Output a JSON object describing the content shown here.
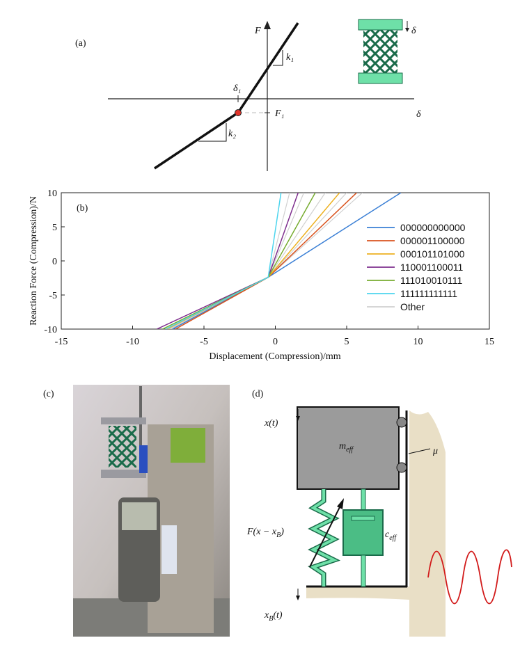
{
  "chart_data": {
    "type": "line",
    "panel_label": "(b)",
    "xlabel": "Displacement (Compression)/mm",
    "ylabel": "Reaction Force (Compression)/N",
    "xlim": [
      -15,
      15
    ],
    "xticks": [
      -15,
      -10,
      -5,
      0,
      5,
      10,
      15
    ],
    "ylim": [
      -10,
      10
    ],
    "yticks": [
      -10,
      -5,
      0,
      5,
      10
    ],
    "series": [
      {
        "name": "Other",
        "color": "#d0d0d0",
        "lines": [
          {
            "x": [
              -7.4,
              -0.5,
              1.0
            ],
            "values": [
              -10,
              -2.4,
              10
            ]
          },
          {
            "x": [
              -7.6,
              -0.5,
              2.0
            ],
            "values": [
              -10,
              -2.4,
              10
            ]
          },
          {
            "x": [
              -7.3,
              -0.5,
              3.5
            ],
            "values": [
              -10,
              -2.4,
              10
            ]
          },
          {
            "x": [
              -7.5,
              -0.5,
              5.0
            ],
            "values": [
              -10,
              -2.4,
              10
            ]
          },
          {
            "x": [
              -7.2,
              -0.5,
              6.1
            ],
            "values": [
              -10,
              -2.4,
              10
            ]
          }
        ]
      },
      {
        "name": "000000000000",
        "color": "#3a7fd5",
        "x": [
          -7.2,
          -0.5,
          8.8
        ],
        "values": [
          -10,
          -2.4,
          10
        ]
      },
      {
        "name": "000001100000",
        "color": "#d9531e",
        "x": [
          -7.0,
          -0.5,
          5.7
        ],
        "values": [
          -10,
          -2.4,
          10
        ]
      },
      {
        "name": "000101101000",
        "color": "#edb120",
        "x": [
          -7.6,
          -0.5,
          4.5
        ],
        "values": [
          -10,
          -2.4,
          10
        ]
      },
      {
        "name": "110001100011",
        "color": "#7e2f8e",
        "x": [
          -8.3,
          -0.5,
          1.6
        ],
        "values": [
          -10,
          -2.4,
          10
        ]
      },
      {
        "name": "111010010111",
        "color": "#77ac30",
        "x": [
          -7.9,
          -0.5,
          2.8
        ],
        "values": [
          -10,
          -2.4,
          10
        ]
      },
      {
        "name": "111111111111",
        "color": "#4dd5ee",
        "x": [
          -7.7,
          -0.5,
          0.4
        ],
        "values": [
          -10,
          -2.4,
          10
        ]
      }
    ]
  },
  "panel_a": {
    "label": "(a)",
    "force": "F",
    "displacement": "δ",
    "delta_1": "δ₁",
    "k_1": "k₁",
    "k_2": "k₂",
    "F_1": "F₁",
    "icon_delta": "δ"
  },
  "panel_c": {
    "label": "(c)"
  },
  "panel_d": {
    "label": "(d)",
    "x_t": "x(t)",
    "mass": {
      "symbol": "m",
      "subscript": "eff"
    },
    "damping": {
      "symbol": "c",
      "subscript": "eff"
    },
    "friction": "μ",
    "spring": {
      "symbol": "F(x − x",
      "subscript": "B",
      "tail": ")"
    },
    "base": {
      "symbol": "x",
      "subscript": "B",
      "tail": "(t)"
    }
  }
}
